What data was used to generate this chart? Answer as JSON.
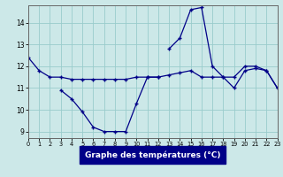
{
  "title": "Graphe des températures (°C)",
  "background_color": "#cce8e8",
  "grid_color": "#99cccc",
  "line_color": "#000088",
  "hours": [
    0,
    1,
    2,
    3,
    4,
    5,
    6,
    7,
    8,
    9,
    10,
    11,
    12,
    13,
    14,
    15,
    16,
    17,
    18,
    19,
    20,
    21,
    22,
    23
  ],
  "series_flat": [
    12.4,
    11.8,
    11.5,
    11.5,
    11.4,
    11.4,
    11.4,
    11.4,
    11.4,
    11.4,
    11.5,
    11.5,
    11.5,
    11.6,
    11.7,
    11.8,
    11.5,
    11.5,
    11.5,
    11.0,
    11.8,
    11.9,
    11.8,
    11.0
  ],
  "series_low": [
    null,
    null,
    null,
    10.9,
    10.5,
    9.9,
    9.2,
    9.0,
    9.0,
    9.0,
    10.3,
    11.5,
    11.5,
    null,
    null,
    null,
    null,
    null,
    null,
    null,
    null,
    null,
    null,
    null
  ],
  "series_high": [
    null,
    null,
    null,
    null,
    null,
    null,
    null,
    null,
    null,
    null,
    null,
    null,
    null,
    12.8,
    13.3,
    14.6,
    14.7,
    12.0,
    11.5,
    11.5,
    12.0,
    12.0,
    11.8,
    11.0
  ],
  "xlim": [
    0,
    23
  ],
  "ylim": [
    8.7,
    14.8
  ],
  "yticks": [
    9,
    10,
    11,
    12,
    13,
    14
  ],
  "xticks": [
    0,
    1,
    2,
    3,
    4,
    5,
    6,
    7,
    8,
    9,
    10,
    11,
    12,
    13,
    14,
    15,
    16,
    17,
    18,
    19,
    20,
    21,
    22,
    23
  ]
}
